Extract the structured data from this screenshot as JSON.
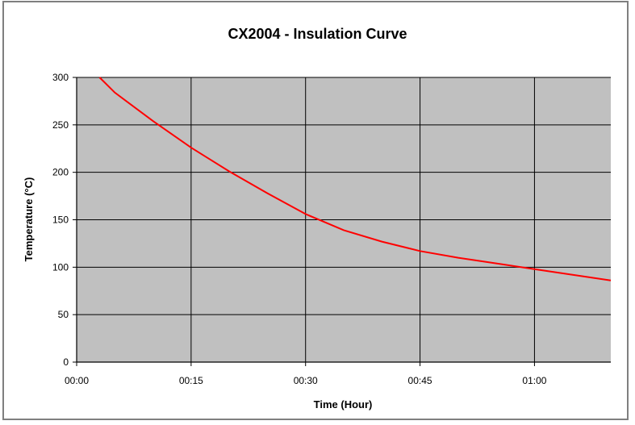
{
  "chart_data": {
    "type": "line",
    "title": "CX2004 - Insulation Curve",
    "xlabel": "Time (Hour)",
    "ylabel": "Temperature (°C)",
    "x_ticks": [
      "00:00",
      "00:15",
      "00:30",
      "00:45",
      "01:00"
    ],
    "y_ticks": [
      "0",
      "50",
      "100",
      "150",
      "200",
      "250",
      "300"
    ],
    "xlim": [
      "00:00",
      "01:10"
    ],
    "ylim": [
      0,
      300
    ],
    "grid": true,
    "colors": {
      "plot_background": "#c0c0c0",
      "line": "#ff0000",
      "grid": "#000000"
    },
    "series": [
      {
        "x": [
          "00:03",
          "00:05",
          "00:10",
          "00:15",
          "00:20",
          "00:25",
          "00:30",
          "00:35",
          "00:40",
          "00:45",
          "00:50",
          "00:55",
          "01:00",
          "01:05",
          "01:10"
        ],
        "y": [
          300,
          284,
          254,
          226,
          201,
          178,
          156,
          139,
          127,
          117,
          110,
          104,
          98,
          92,
          86
        ]
      }
    ]
  }
}
